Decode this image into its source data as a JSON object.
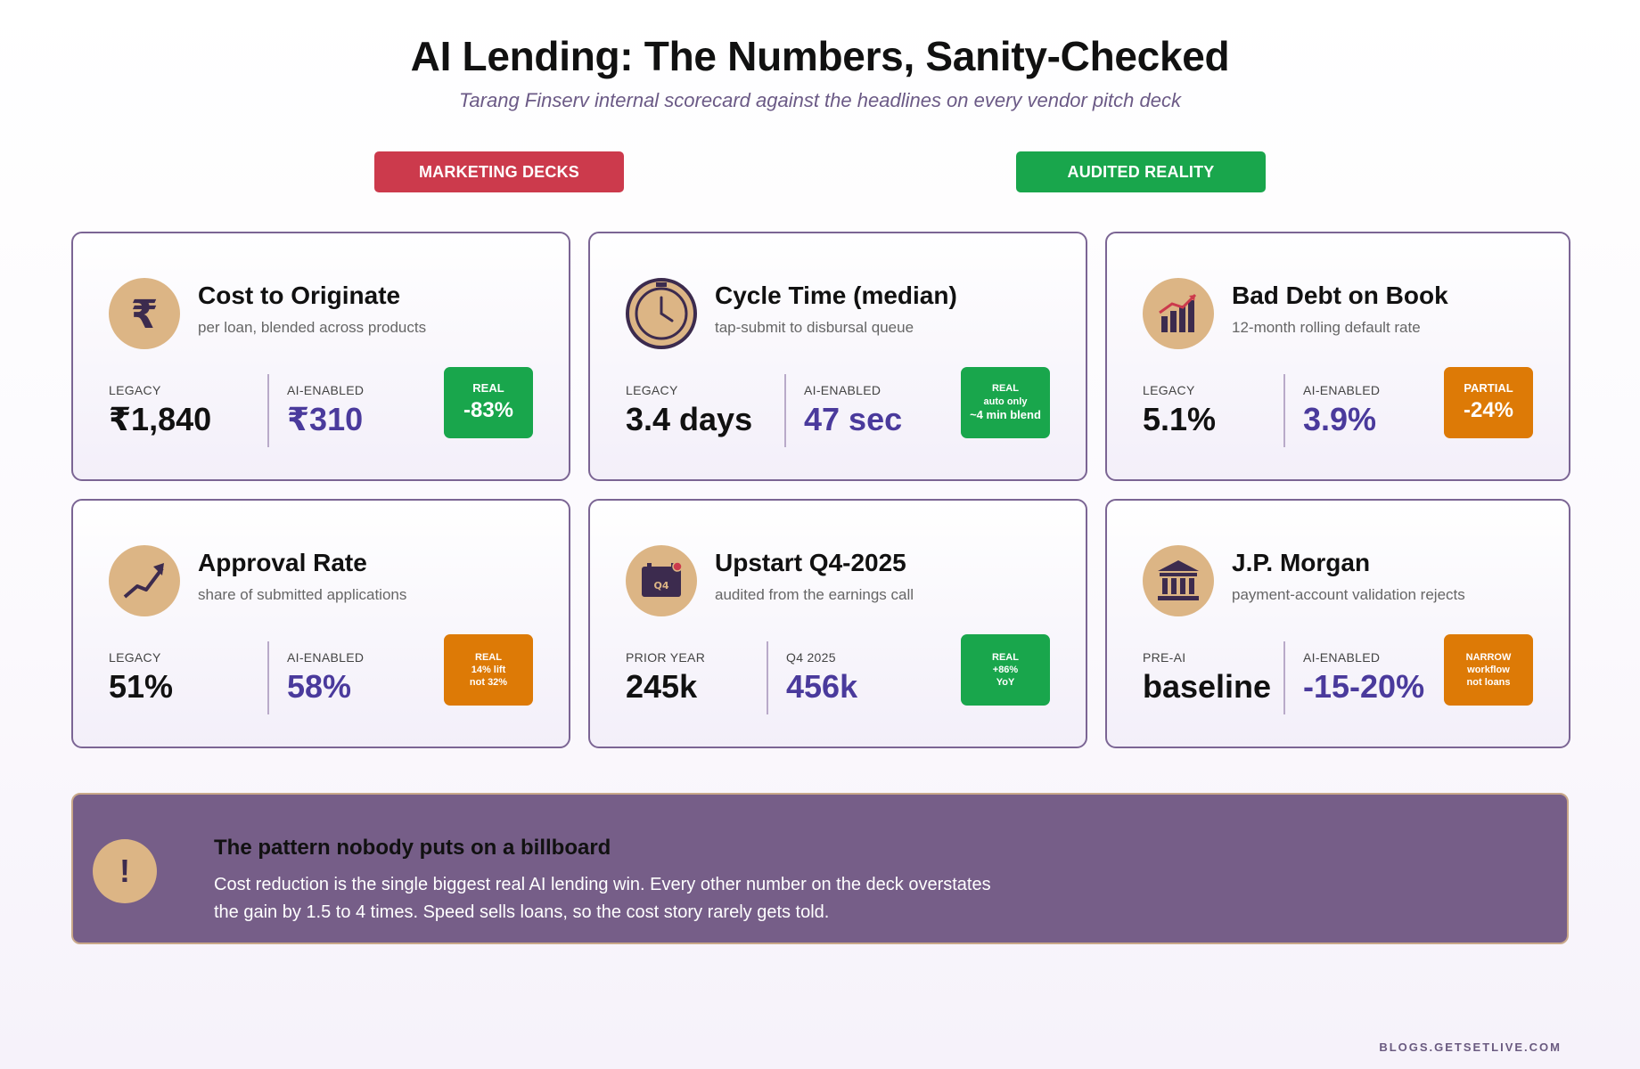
{
  "header": {
    "title": "AI Lending: The Numbers, Sanity-Checked",
    "subtitle": "Tarang Finserv internal scorecard against the headlines on every vendor pitch deck"
  },
  "columns": {
    "left_label": "MARKETING DECKS",
    "right_label": "AUDITED REALITY"
  },
  "cards": [
    {
      "icon": "rupee-icon",
      "title": "Cost to Originate",
      "subtitle": "per loan, blended across products",
      "left_label": "LEGACY",
      "left_value": "₹1,840",
      "right_label": "AI-ENABLED",
      "right_value": "₹310",
      "badge": {
        "line1": "REAL",
        "line2": "-83%",
        "line3": "",
        "color": "green"
      }
    },
    {
      "icon": "clock-icon",
      "title": "Cycle Time (median)",
      "subtitle": "tap-submit to disbursal queue",
      "left_label": "LEGACY",
      "left_value": "3.4 days",
      "right_label": "AI-ENABLED",
      "right_value": "47 sec",
      "badge": {
        "line1": "REAL",
        "line2": "auto only",
        "line3": "~4 min blend",
        "color": "green"
      }
    },
    {
      "icon": "bar-chart-icon",
      "title": "Bad Debt on Book",
      "subtitle": "12-month rolling default rate",
      "left_label": "LEGACY",
      "left_value": "5.1%",
      "right_label": "AI-ENABLED",
      "right_value": "3.9%",
      "badge": {
        "line1": "PARTIAL",
        "line2": "-24%",
        "line3": "",
        "color": "orange"
      }
    },
    {
      "icon": "trend-up-icon",
      "title": "Approval Rate",
      "subtitle": "share of submitted applications",
      "left_label": "LEGACY",
      "left_value": "51%",
      "right_label": "AI-ENABLED",
      "right_value": "58%",
      "badge": {
        "line1": "REAL",
        "line2": "14% lift",
        "line3": "not 32%",
        "color": "orange"
      }
    },
    {
      "icon": "calendar-q4-icon",
      "icon_text": "Q4",
      "title": "Upstart Q4-2025",
      "subtitle": "audited from the earnings call",
      "left_label": "PRIOR YEAR",
      "left_value": "245k",
      "right_label": "Q4 2025",
      "right_value": "456k",
      "badge": {
        "line1": "REAL",
        "line2": "+86%",
        "line3": "YoY",
        "color": "green"
      }
    },
    {
      "icon": "bank-icon",
      "title": "J.P. Morgan",
      "subtitle": "payment-account validation rejects",
      "left_label": "PRE-AI",
      "left_value": "baseline",
      "right_label": "AI-ENABLED",
      "right_value": "-15-20%",
      "badge": {
        "line1": "NARROW",
        "line2": "workflow",
        "line3": "not loans",
        "color": "orange"
      }
    }
  ],
  "callout": {
    "icon": "exclamation-icon",
    "icon_text": "!",
    "heading": "The pattern nobody puts on a billboard",
    "body": "Cost reduction is the single biggest real AI lending win. Every other number on the deck overstates the gain by 1.5 to 4 times. Speed sells loans, so the cost story rarely gets told."
  },
  "footer": "BLOGS.GETSETLIVE.COM",
  "colors": {
    "accent_purple": "#4a3a9c",
    "badge_green": "#19a64c",
    "badge_orange": "#dd7a06",
    "pill_red": "#cc3a4c",
    "icon_tan": "#dcb585",
    "callout_bg": "#765e88"
  }
}
